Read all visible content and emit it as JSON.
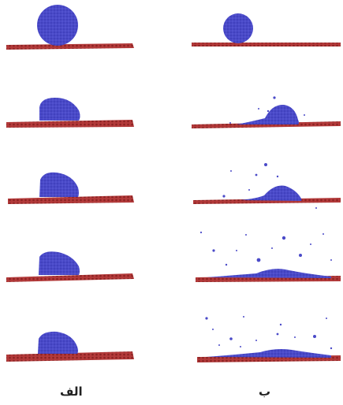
{
  "figure": {
    "columns": [
      {
        "id": "a",
        "label": "الف",
        "panels": 5
      },
      {
        "id": "b",
        "label": "ب",
        "panels": 5
      }
    ]
  },
  "colors": {
    "substrate": "#b33a3a",
    "substrate_dot": "#8c2222",
    "droplet": "#4a4ac8",
    "droplet_dark": "#3434a8"
  }
}
